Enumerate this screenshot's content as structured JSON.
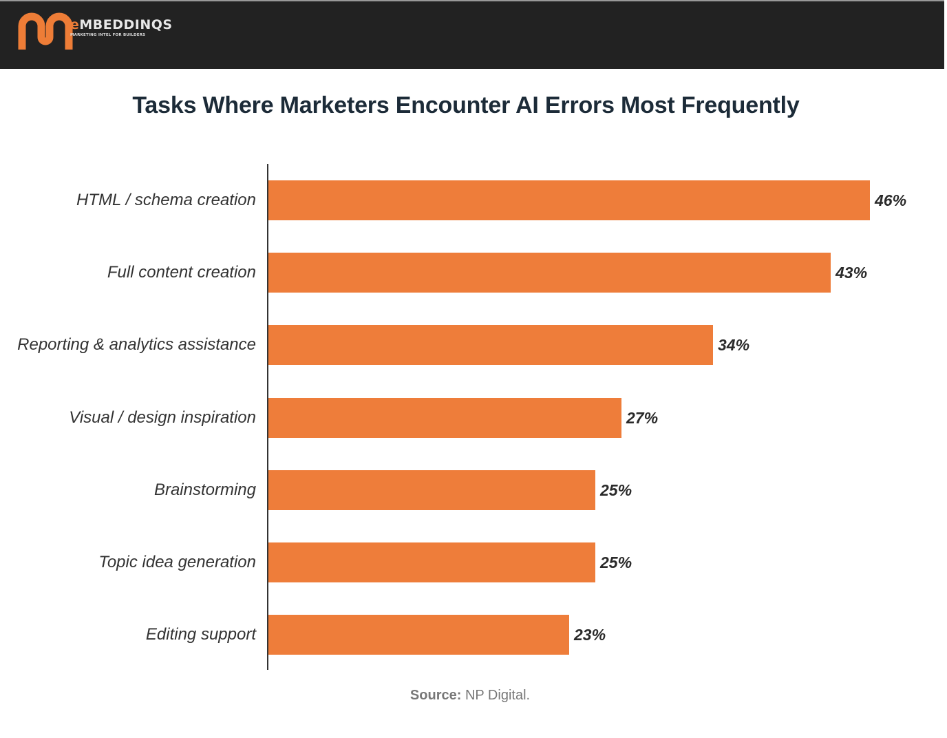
{
  "header": {
    "logo_letter": "e",
    "logo_name": "MBEDDINQS",
    "logo_tagline": "MARKETING INTEL FOR BUILDERS",
    "brand_color": "#ee7d37",
    "background": "#222222"
  },
  "chart": {
    "title": "Tasks Where Marketers Encounter AI Errors Most Frequently",
    "source_label": "Source:",
    "source_value": "NP Digital.",
    "bar_color": "#ee7d3a"
  },
  "chart_data": {
    "type": "bar",
    "orientation": "horizontal",
    "title": "Tasks Where Marketers Encounter AI Errors Most Frequently",
    "xlabel": "",
    "ylabel": "",
    "categories": [
      "HTML / schema creation",
      "Full content creation",
      "Reporting & analytics assistance",
      "Visual / design inspiration",
      "Brainstorming",
      "Topic idea generation",
      "Editing support"
    ],
    "values": [
      46,
      43,
      34,
      27,
      25,
      25,
      23
    ],
    "value_labels": [
      "46%",
      "43%",
      "34%",
      "27%",
      "25%",
      "25%",
      "23%"
    ],
    "unit": "%",
    "grid": false,
    "legend": null,
    "xlim": [
      0,
      50
    ],
    "source": "Source: NP Digital."
  }
}
